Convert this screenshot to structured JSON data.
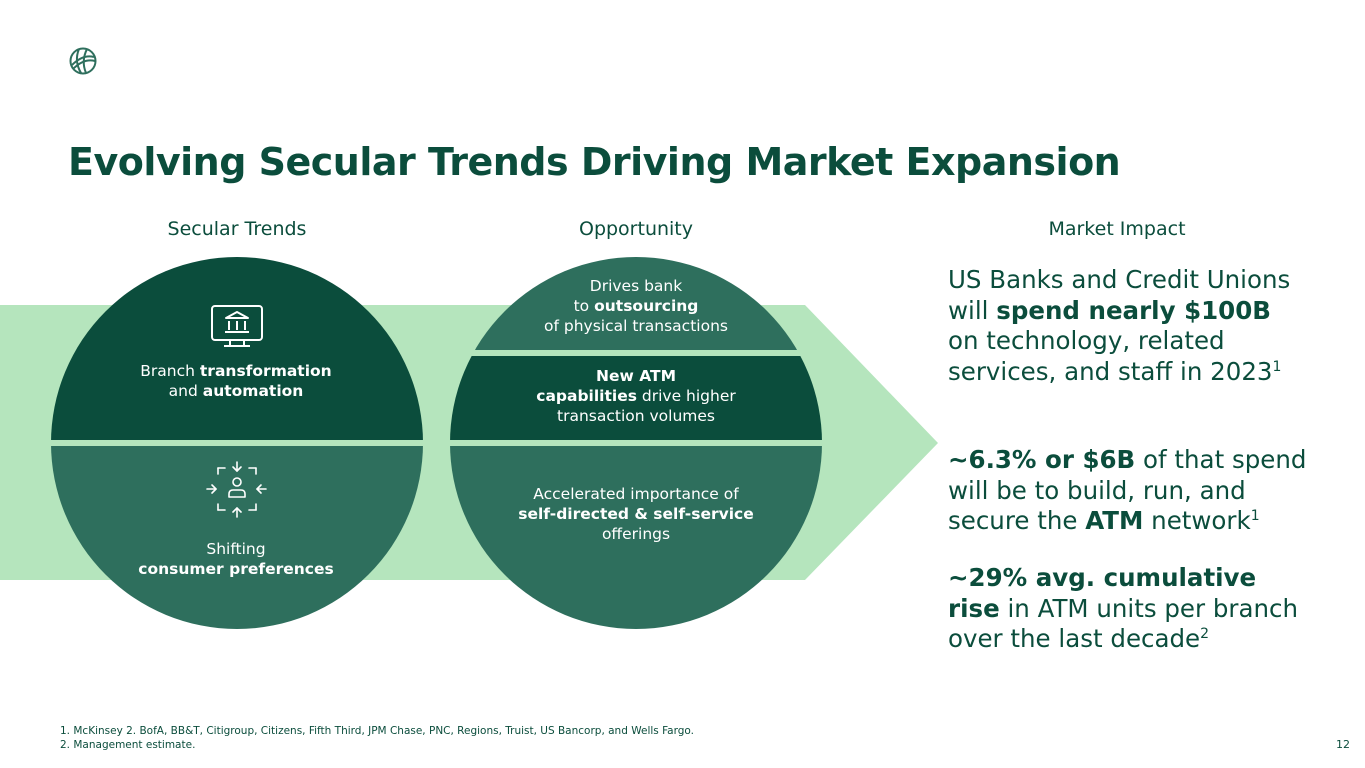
{
  "slide": {
    "title": "Evolving Secular Trends Driving Market Expansion",
    "page_number": "12"
  },
  "columns": {
    "secular_trends": "Secular Trends",
    "opportunity": "Opportunity",
    "market_impact": "Market Impact"
  },
  "secular_trends": {
    "branch": {
      "plain": "Branch ",
      "bold1": "transformation",
      "plain2": "and ",
      "bold2": "automation"
    },
    "shifting": {
      "plain": "Shifting",
      "bold": "consumer preferences"
    }
  },
  "opportunity": {
    "outsourcing": {
      "line1": "Drives bank",
      "plain": "to ",
      "bold": "outsourcing",
      "line3": "of physical transactions"
    },
    "atm": {
      "bold1": "New ATM",
      "bold2": "capabilities",
      "plain": " drive higher",
      "line3": "transaction volumes"
    },
    "self_service": {
      "line1": "Accelerated importance of",
      "bold": "self-directed & self-service",
      "line3": "offerings"
    }
  },
  "market_impact": {
    "item1": {
      "a": "US Banks and Credit Unions will ",
      "b": "spend nearly $100B",
      "c": " on technology, related services, and staff in 2023",
      "sup": "1"
    },
    "item2": {
      "b": "~6.3% or $6B",
      "c": " of that spend will be to build, run, and secure the ",
      "d": "ATM",
      "e": " network",
      "sup": "1"
    },
    "item3": {
      "b": "~29% avg. cumulative rise",
      "c": " in ATM units per branch over the last decade",
      "sup": "2"
    }
  },
  "footnotes": {
    "line1": "1.  McKinsey 2. BofA, BB&T, Citigroup, Citizens, Fifth Third, JPM Chase, PNC, Regions, Truist, US Bancorp, and Wells Fargo.",
    "line2": "2. Management estimate."
  },
  "icons": {
    "logo": "globe-logo-icon",
    "branch": "bank-monitor-icon",
    "shifting": "converging-arrows-person-icon"
  },
  "colors": {
    "dark_green": "#0b4d3c",
    "medium_green": "#2e6f5d",
    "light_green": "#b5e5bd",
    "text_white": "#ffffff"
  }
}
